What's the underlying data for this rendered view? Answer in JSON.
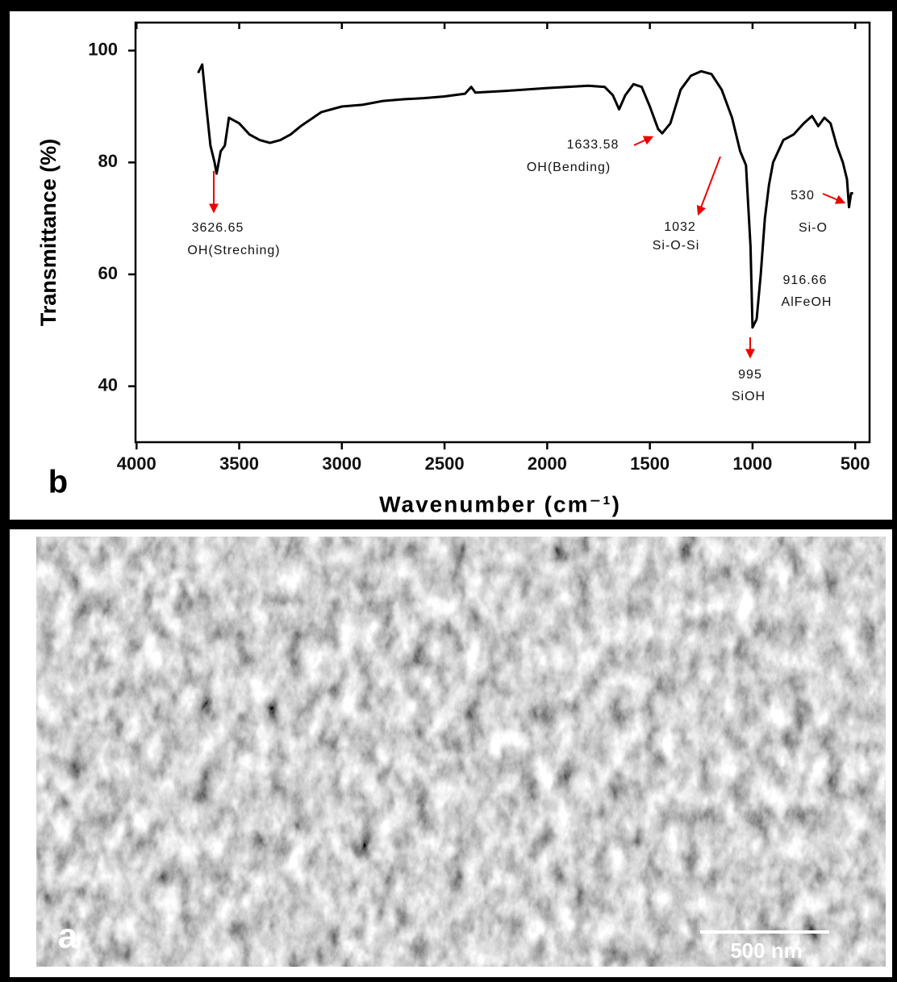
{
  "chart_data": {
    "type": "line",
    "panel_label": "b",
    "y_label": "Transmittance (%)",
    "x_label": "Wavenumber (cm⁻¹)",
    "color": "#000000",
    "xlim": [
      4005,
      430
    ],
    "ylim": [
      30,
      105
    ],
    "xticks": [
      4000,
      3500,
      3000,
      2500,
      2000,
      1500,
      1000,
      500
    ],
    "yticks": [
      40,
      60,
      80,
      100
    ],
    "x": [
      3700,
      3680,
      3660,
      3640,
      3620,
      3610,
      3590,
      3570,
      3550,
      3500,
      3450,
      3400,
      3350,
      3300,
      3250,
      3200,
      3100,
      3000,
      2900,
      2800,
      2700,
      2600,
      2500,
      2400,
      2370,
      2350,
      2200,
      2000,
      1800,
      1720,
      1680,
      1650,
      1620,
      1580,
      1540,
      1500,
      1460,
      1440,
      1400,
      1350,
      1300,
      1250,
      1200,
      1150,
      1100,
      1060,
      1032,
      1010,
      1000,
      980,
      960,
      940,
      920,
      900,
      850,
      800,
      750,
      710,
      680,
      650,
      620,
      590,
      560,
      540,
      530,
      520,
      510
    ],
    "values": [
      96,
      97.5,
      90,
      83,
      80,
      78,
      82,
      83,
      88,
      87,
      85,
      84,
      83.5,
      84,
      85,
      86.5,
      89,
      90,
      90.3,
      91,
      91.3,
      91.5,
      91.8,
      92.3,
      93.5,
      92.5,
      92.8,
      93.3,
      93.7,
      93.5,
      92,
      89.5,
      92,
      94,
      93.5,
      90,
      86,
      85.2,
      87,
      93,
      95.5,
      96.3,
      95.8,
      93,
      88,
      82,
      79.5,
      65,
      50.5,
      52,
      60,
      70,
      76,
      80,
      84,
      85,
      87,
      88.3,
      86.5,
      88,
      87,
      83,
      80,
      77,
      72,
      74.5,
      74.5
    ],
    "annotations": [
      {
        "text": "3626.65",
        "label": "OH(Streching)"
      },
      {
        "text": "1633.58",
        "label": "OH(Bending)"
      },
      {
        "text": "1032",
        "label": "Si-O-Si"
      },
      {
        "text": "995",
        "label": "SiOH"
      },
      {
        "text": "916.66",
        "label": "AlFeOH"
      },
      {
        "text": "530",
        "label": "Si-O"
      }
    ]
  },
  "sem_image": {
    "panel_label": "a",
    "scale_bar": "500 nm"
  }
}
